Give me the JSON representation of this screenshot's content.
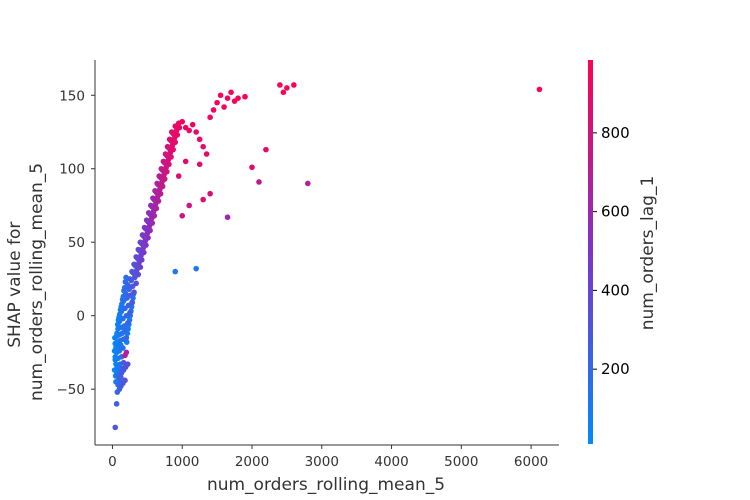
{
  "chart_data": {
    "type": "scatter",
    "title": "",
    "xlabel": "num_orders_rolling_mean_5",
    "ylabel_lines": [
      "SHAP value for",
      "num_orders_rolling_mean_5"
    ],
    "xlim": [
      -250,
      6400
    ],
    "ylim": [
      -88,
      174
    ],
    "xticks": [
      0,
      1000,
      2000,
      3000,
      4000,
      5000,
      6000
    ],
    "xtick_labels": [
      "0",
      "1000",
      "2000",
      "3000",
      "4000",
      "5000",
      "6000"
    ],
    "yticks": [
      -50,
      0,
      50,
      100,
      150
    ],
    "ytick_labels": [
      "−50",
      "0",
      "50",
      "100",
      "150"
    ],
    "grid": false,
    "colorbar": {
      "label": "num_orders_lag_1",
      "range": [
        10,
        985
      ],
      "ticks": [
        200,
        400,
        600,
        800
      ],
      "tick_labels": [
        "200",
        "400",
        "600",
        "800"
      ],
      "color_low": "#008afb",
      "color_mid": "#7f34c6",
      "color_high": "#ff0052"
    },
    "points": [
      [
        40,
        -76,
        300
      ],
      [
        60,
        -60,
        250
      ],
      [
        70,
        -52,
        200
      ],
      [
        80,
        -47,
        150
      ],
      [
        50,
        -45,
        120
      ],
      [
        100,
        -44,
        180
      ],
      [
        120,
        -42,
        220
      ],
      [
        60,
        -40,
        100
      ],
      [
        90,
        -38,
        130
      ],
      [
        140,
        -36,
        260
      ],
      [
        70,
        -35,
        80
      ],
      [
        110,
        -33,
        140
      ],
      [
        160,
        -32,
        300
      ],
      [
        40,
        -30,
        60
      ],
      [
        80,
        -29,
        90
      ],
      [
        130,
        -28,
        160
      ],
      [
        180,
        -27,
        700
      ],
      [
        200,
        -25,
        650
      ],
      [
        60,
        -25,
        70
      ],
      [
        100,
        -24,
        110
      ],
      [
        150,
        -22,
        150
      ],
      [
        50,
        -22,
        50
      ],
      [
        90,
        -21,
        90
      ],
      [
        120,
        -20,
        130
      ],
      [
        40,
        -19,
        40
      ],
      [
        70,
        -18,
        70
      ],
      [
        110,
        -17,
        110
      ],
      [
        160,
        -16,
        180
      ],
      [
        200,
        -15,
        220
      ],
      [
        60,
        -14,
        60
      ],
      [
        100,
        -13,
        100
      ],
      [
        140,
        -12,
        140
      ],
      [
        180,
        -10,
        190
      ],
      [
        80,
        -9,
        80
      ],
      [
        120,
        -8,
        120
      ],
      [
        170,
        -7,
        170
      ],
      [
        220,
        -5,
        230
      ],
      [
        100,
        -4,
        100
      ],
      [
        150,
        -2,
        150
      ],
      [
        200,
        0,
        200
      ],
      [
        250,
        2,
        260
      ],
      [
        130,
        3,
        130
      ],
      [
        180,
        5,
        180
      ],
      [
        230,
        7,
        240
      ],
      [
        280,
        9,
        290
      ],
      [
        160,
        10,
        160
      ],
      [
        210,
        12,
        210
      ],
      [
        260,
        14,
        270
      ],
      [
        310,
        16,
        320
      ],
      [
        190,
        15,
        190
      ],
      [
        240,
        18,
        250
      ],
      [
        290,
        20,
        300
      ],
      [
        340,
        22,
        350
      ],
      [
        220,
        21,
        220
      ],
      [
        270,
        24,
        280
      ],
      [
        320,
        26,
        330
      ],
      [
        370,
        28,
        380
      ],
      [
        250,
        25,
        250
      ],
      [
        300,
        29,
        310
      ],
      [
        350,
        31,
        360
      ],
      [
        400,
        33,
        420
      ],
      [
        280,
        30,
        280
      ],
      [
        330,
        34,
        340
      ],
      [
        380,
        36,
        400
      ],
      [
        420,
        38,
        450
      ],
      [
        310,
        35,
        310
      ],
      [
        360,
        39,
        370
      ],
      [
        410,
        41,
        430
      ],
      [
        450,
        43,
        480
      ],
      [
        340,
        40,
        340
      ],
      [
        390,
        44,
        400
      ],
      [
        440,
        46,
        460
      ],
      [
        480,
        48,
        500
      ],
      [
        370,
        45,
        370
      ],
      [
        420,
        49,
        430
      ],
      [
        470,
        51,
        490
      ],
      [
        510,
        53,
        540
      ],
      [
        400,
        50,
        400
      ],
      [
        450,
        54,
        460
      ],
      [
        500,
        56,
        520
      ],
      [
        540,
        58,
        570
      ],
      [
        430,
        55,
        430
      ],
      [
        480,
        59,
        490
      ],
      [
        530,
        61,
        560
      ],
      [
        570,
        63,
        600
      ],
      [
        460,
        60,
        470
      ],
      [
        510,
        64,
        520
      ],
      [
        560,
        66,
        590
      ],
      [
        600,
        68,
        630
      ],
      [
        490,
        65,
        500
      ],
      [
        540,
        69,
        550
      ],
      [
        590,
        71,
        620
      ],
      [
        630,
        73,
        660
      ],
      [
        520,
        70,
        530
      ],
      [
        570,
        74,
        590
      ],
      [
        620,
        76,
        650
      ],
      [
        660,
        78,
        690
      ],
      [
        550,
        75,
        560
      ],
      [
        600,
        79,
        620
      ],
      [
        650,
        81,
        680
      ],
      [
        690,
        83,
        720
      ],
      [
        580,
        80,
        600
      ],
      [
        630,
        84,
        650
      ],
      [
        680,
        86,
        710
      ],
      [
        720,
        88,
        750
      ],
      [
        610,
        85,
        630
      ],
      [
        660,
        89,
        680
      ],
      [
        710,
        91,
        740
      ],
      [
        750,
        93,
        780
      ],
      [
        640,
        90,
        660
      ],
      [
        690,
        94,
        710
      ],
      [
        740,
        96,
        770
      ],
      [
        780,
        98,
        810
      ],
      [
        670,
        95,
        690
      ],
      [
        720,
        99,
        740
      ],
      [
        770,
        101,
        800
      ],
      [
        810,
        103,
        840
      ],
      [
        700,
        100,
        720
      ],
      [
        750,
        104,
        770
      ],
      [
        800,
        106,
        830
      ],
      [
        840,
        108,
        860
      ],
      [
        730,
        105,
        750
      ],
      [
        780,
        109,
        800
      ],
      [
        830,
        111,
        850
      ],
      [
        870,
        113,
        880
      ],
      [
        760,
        110,
        780
      ],
      [
        810,
        114,
        830
      ],
      [
        860,
        116,
        870
      ],
      [
        900,
        118,
        890
      ],
      [
        790,
        115,
        810
      ],
      [
        840,
        119,
        860
      ],
      [
        890,
        121,
        890
      ],
      [
        930,
        123,
        900
      ],
      [
        820,
        120,
        840
      ],
      [
        870,
        124,
        880
      ],
      [
        920,
        126,
        900
      ],
      [
        960,
        128,
        910
      ],
      [
        850,
        125,
        870
      ],
      [
        900,
        129,
        890
      ],
      [
        950,
        131,
        910
      ],
      [
        1000,
        132,
        920
      ],
      [
        1050,
        128,
        910
      ],
      [
        1100,
        126,
        900
      ],
      [
        1150,
        130,
        920
      ],
      [
        1200,
        125,
        910
      ],
      [
        1250,
        120,
        900
      ],
      [
        1300,
        115,
        890
      ],
      [
        1350,
        110,
        880
      ],
      [
        1400,
        135,
        930
      ],
      [
        1450,
        140,
        940
      ],
      [
        1500,
        145,
        950
      ],
      [
        1550,
        150,
        960
      ],
      [
        1600,
        142,
        940
      ],
      [
        1650,
        148,
        950
      ],
      [
        1700,
        152,
        960
      ],
      [
        1750,
        146,
        950
      ],
      [
        1800,
        148,
        955
      ],
      [
        1900,
        149,
        960
      ],
      [
        2000,
        101,
        880
      ],
      [
        2100,
        91,
        750
      ],
      [
        2200,
        113,
        900
      ],
      [
        2400,
        157,
        970
      ],
      [
        2450,
        152,
        960
      ],
      [
        2500,
        155,
        965
      ],
      [
        2600,
        157,
        970
      ],
      [
        2800,
        90,
        700
      ],
      [
        1650,
        67,
        600
      ],
      [
        1250,
        103,
        870
      ],
      [
        1100,
        75,
        800
      ],
      [
        1000,
        68,
        780
      ],
      [
        900,
        30,
        120
      ],
      [
        1200,
        32,
        110
      ],
      [
        1300,
        79,
        840
      ],
      [
        1400,
        83,
        850
      ],
      [
        950,
        95,
        860
      ],
      [
        1050,
        105,
        880
      ],
      [
        6120,
        154,
        960
      ],
      [
        30,
        -24,
        30
      ],
      [
        40,
        -28,
        25
      ],
      [
        50,
        -33,
        30
      ],
      [
        30,
        -37,
        35
      ],
      [
        45,
        -41,
        40
      ],
      [
        55,
        -20,
        28
      ],
      [
        35,
        -15,
        32
      ],
      [
        65,
        -12,
        45
      ],
      [
        75,
        -6,
        55
      ],
      [
        85,
        -3,
        65
      ],
      [
        95,
        -1,
        75
      ],
      [
        105,
        1,
        85
      ],
      [
        115,
        4,
        95
      ],
      [
        125,
        6,
        105
      ],
      [
        135,
        8,
        115
      ],
      [
        145,
        11,
        125
      ],
      [
        155,
        13,
        135
      ],
      [
        165,
        17,
        145
      ],
      [
        175,
        19,
        155
      ],
      [
        185,
        23,
        165
      ],
      [
        195,
        26,
        175
      ],
      [
        205,
        -18,
        60
      ],
      [
        215,
        -12,
        70
      ],
      [
        225,
        -9,
        80
      ],
      [
        235,
        -6,
        90
      ],
      [
        245,
        -3,
        100
      ],
      [
        255,
        0,
        110
      ],
      [
        265,
        3,
        120
      ],
      [
        275,
        6,
        130
      ],
      [
        285,
        9,
        140
      ],
      [
        295,
        12,
        150
      ],
      [
        305,
        15,
        160
      ],
      [
        90,
        -42,
        260
      ],
      [
        120,
        -48,
        280
      ],
      [
        150,
        -46,
        300
      ],
      [
        180,
        -44,
        320
      ],
      [
        100,
        -50,
        240
      ],
      [
        130,
        -39,
        270
      ],
      [
        160,
        -37,
        290
      ],
      [
        190,
        -35,
        310
      ],
      [
        220,
        -33,
        330
      ]
    ]
  }
}
